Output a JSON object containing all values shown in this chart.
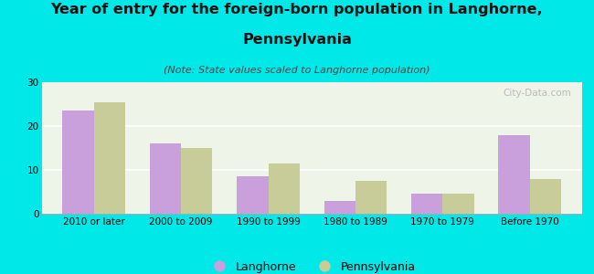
{
  "title_line1": "Year of entry for the foreign-born population in Langhorne,",
  "title_line2": "Pennsylvania",
  "subtitle": "(Note: State values scaled to Langhorne population)",
  "categories": [
    "2010 or later",
    "2000 to 2009",
    "1990 to 1999",
    "1980 to 1989",
    "1970 to 1979",
    "Before 1970"
  ],
  "langhorne_values": [
    23.5,
    16.0,
    8.5,
    3.0,
    4.5,
    18.0
  ],
  "pennsylvania_values": [
    25.5,
    15.0,
    11.5,
    7.5,
    4.5,
    8.0
  ],
  "langhorne_color": "#c9a0dc",
  "pennsylvania_color": "#c8cc99",
  "background_color": "#00e8e8",
  "plot_bg_color": "#eef5e8",
  "ylim": [
    0,
    30
  ],
  "yticks": [
    0,
    10,
    20,
    30
  ],
  "bar_width": 0.36,
  "title_fontsize": 11.5,
  "subtitle_fontsize": 8,
  "tick_fontsize": 7.5,
  "legend_fontsize": 9,
  "watermark_text": "City-Data.com",
  "watermark_color": "#b0b0b0"
}
